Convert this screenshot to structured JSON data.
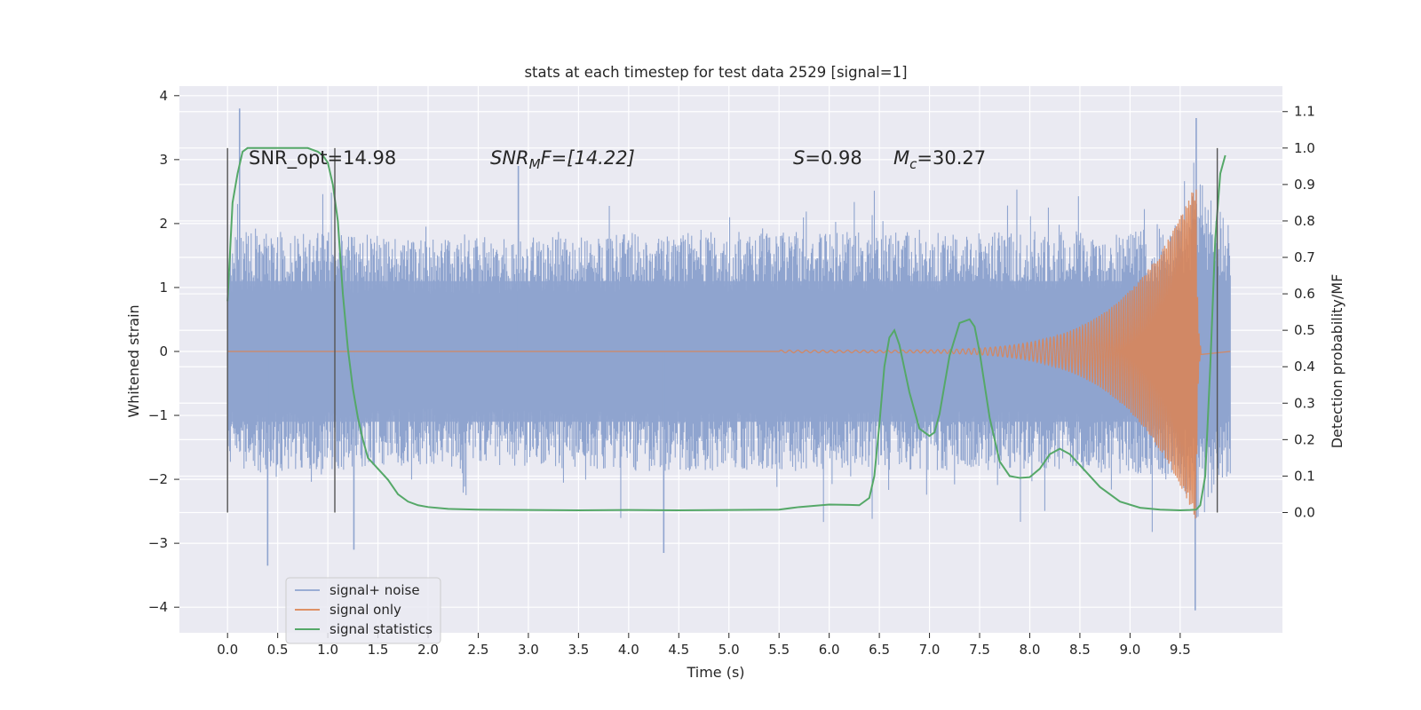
{
  "chart_data": {
    "type": "line",
    "title": "stats at each timestep for test data 2529 [signal=1]",
    "xlabel": "Time (s)",
    "ylabel": "Whitened strain",
    "y2label": "Detection probability/MF",
    "xlim": [
      -0.48,
      10.52
    ],
    "ylim": [
      -4.4,
      4.15
    ],
    "y2lim": [
      -0.33,
      1.17
    ],
    "xticks": [
      "0.0",
      "0.5",
      "1.0",
      "1.5",
      "2.0",
      "2.5",
      "3.0",
      "3.5",
      "4.0",
      "4.5",
      "5.0",
      "5.5",
      "6.0",
      "6.5",
      "7.0",
      "7.5",
      "8.0",
      "8.5",
      "9.0",
      "9.5"
    ],
    "yticks": [
      "4",
      "3",
      "2",
      "1",
      "0",
      "−1",
      "−2",
      "−3",
      "−4"
    ],
    "y2ticks": [
      "1.1",
      "1.0",
      "0.9",
      "0.8",
      "0.7",
      "0.6",
      "0.5",
      "0.4",
      "0.3",
      "0.2",
      "0.1",
      "0.0"
    ],
    "grid": true,
    "legend_position": "lower-left",
    "annotations": {
      "snr_opt": "SNR_opt=14.98",
      "snr_mf_sym": "SNR",
      "snr_mf_sub": "M",
      "snr_mf_rest": "F=[14.22]",
      "s_sym": "S",
      "s_rest": "=0.98",
      "mc_sym": "M",
      "mc_sub": "c",
      "mc_rest": "=30.27"
    },
    "vertical_markers_x": [
      0.0,
      1.07,
      9.87
    ],
    "series": [
      {
        "name": "signal+ noise",
        "color": "#8fa4cf",
        "envelope": {
          "x": [
            0.0,
            1.0,
            2.0,
            3.0,
            4.0,
            5.0,
            6.0,
            7.0,
            8.0,
            9.0,
            9.5,
            9.6,
            9.66,
            10.0
          ],
          "upper": [
            1.7,
            1.7,
            1.6,
            1.65,
            1.7,
            1.7,
            1.7,
            1.7,
            1.7,
            1.75,
            1.9,
            2.2,
            2.5,
            1.8
          ],
          "lower": [
            -1.7,
            -1.7,
            -1.6,
            -1.65,
            -1.7,
            -1.7,
            -1.7,
            -1.7,
            -1.7,
            -1.75,
            -1.9,
            -2.2,
            -2.5,
            -1.8
          ]
        },
        "peaks": [
          {
            "x": 0.12,
            "y": 3.8
          },
          {
            "x": 0.4,
            "y": -3.35
          },
          {
            "x": 1.26,
            "y": -3.1
          },
          {
            "x": 2.9,
            "y": 2.9
          },
          {
            "x": 4.35,
            "y": -3.15
          },
          {
            "x": 9.66,
            "y": 3.65
          },
          {
            "x": 9.65,
            "y": -4.05
          }
        ]
      },
      {
        "name": "signal only",
        "color": "#dd8452",
        "chirp": {
          "start_x": 5.5,
          "merge_x": 9.66,
          "end_x": 10.0,
          "start_amp": 0.02,
          "peak_amp": 2.65,
          "start_freq": 12,
          "end_freq": 70
        }
      },
      {
        "name": "signal statistics",
        "color": "#55a868",
        "axis": "right",
        "x": [
          0.0,
          0.05,
          0.1,
          0.15,
          0.2,
          0.3,
          0.4,
          0.5,
          0.6,
          0.7,
          0.8,
          0.9,
          0.95,
          1.0,
          1.05,
          1.1,
          1.15,
          1.2,
          1.25,
          1.3,
          1.35,
          1.4,
          1.5,
          1.6,
          1.7,
          1.8,
          1.9,
          2.0,
          2.2,
          2.5,
          3.0,
          3.5,
          4.0,
          4.5,
          5.0,
          5.5,
          5.7,
          6.0,
          6.2,
          6.3,
          6.4,
          6.45,
          6.5,
          6.55,
          6.6,
          6.65,
          6.7,
          6.8,
          6.9,
          7.0,
          7.05,
          7.1,
          7.2,
          7.3,
          7.4,
          7.45,
          7.5,
          7.6,
          7.7,
          7.8,
          7.9,
          8.0,
          8.1,
          8.2,
          8.3,
          8.4,
          8.5,
          8.7,
          8.9,
          9.1,
          9.3,
          9.5,
          9.6,
          9.66,
          9.7,
          9.75,
          9.8,
          9.85,
          9.9,
          9.95
        ],
        "y": [
          0.58,
          0.85,
          0.93,
          0.99,
          1.0,
          1.0,
          1.0,
          1.0,
          1.0,
          1.0,
          1.0,
          0.99,
          0.98,
          0.96,
          0.9,
          0.8,
          0.6,
          0.45,
          0.34,
          0.26,
          0.2,
          0.15,
          0.12,
          0.09,
          0.05,
          0.03,
          0.02,
          0.015,
          0.01,
          0.008,
          0.007,
          0.006,
          0.007,
          0.006,
          0.007,
          0.008,
          0.015,
          0.022,
          0.021,
          0.02,
          0.04,
          0.1,
          0.24,
          0.4,
          0.48,
          0.5,
          0.46,
          0.33,
          0.23,
          0.21,
          0.22,
          0.27,
          0.43,
          0.52,
          0.53,
          0.51,
          0.44,
          0.26,
          0.14,
          0.1,
          0.095,
          0.097,
          0.12,
          0.16,
          0.175,
          0.16,
          0.13,
          0.07,
          0.03,
          0.013,
          0.008,
          0.006,
          0.007,
          0.008,
          0.02,
          0.1,
          0.4,
          0.75,
          0.93,
          0.98
        ]
      }
    ]
  },
  "legend": {
    "items": [
      {
        "label": "signal+ noise",
        "color": "#8fa4cf"
      },
      {
        "label": "signal only",
        "color": "#dd8452"
      },
      {
        "label": "signal statistics",
        "color": "#55a868"
      }
    ]
  }
}
